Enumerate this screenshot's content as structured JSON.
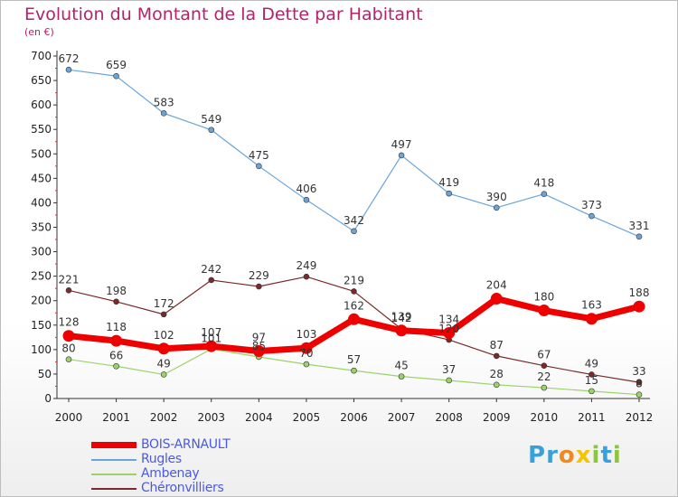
{
  "title": "Evolution du Montant de la Dette par Habitant",
  "subtitle": "(en €)",
  "logo": {
    "letters": [
      "P",
      "r",
      "o",
      "x",
      "i",
      "t",
      "i"
    ],
    "colors": [
      "#3aa0d8",
      "#3aa0d8",
      "#f08a1d",
      "#f4c400",
      "#8cc63f",
      "#3aa0d8",
      "#8cc63f"
    ]
  },
  "chart_data": {
    "type": "line",
    "title": "Evolution du Montant de la Dette par Habitant",
    "ylabel": "(en €)",
    "x": [
      2000,
      2001,
      2002,
      2003,
      2004,
      2005,
      2006,
      2007,
      2008,
      2009,
      2010,
      2011,
      2012
    ],
    "ylim": [
      0,
      700
    ],
    "yticks": [
      0,
      50,
      100,
      150,
      200,
      250,
      300,
      350,
      400,
      450,
      500,
      550,
      600,
      650,
      700
    ],
    "grid": false,
    "legend_position": "bottom-left",
    "series": [
      {
        "name": "BOIS-ARNAULT",
        "color": "#ee0000",
        "thick": true,
        "values": [
          128,
          118,
          102,
          107,
          97,
          103,
          162,
          139,
          134,
          204,
          180,
          163,
          188
        ]
      },
      {
        "name": "Rugles",
        "color": "#6aa4d8",
        "thick": false,
        "values": [
          672,
          659,
          583,
          549,
          475,
          406,
          342,
          497,
          419,
          390,
          418,
          373,
          331
        ]
      },
      {
        "name": "Ambenay",
        "color": "#9bd36a",
        "thick": false,
        "values": [
          80,
          66,
          49,
          101,
          85,
          70,
          57,
          45,
          37,
          28,
          22,
          15,
          8
        ]
      },
      {
        "name": "Chéronvilliers",
        "color": "#7a2a2a",
        "thick": false,
        "values": [
          221,
          198,
          172,
          242,
          229,
          249,
          219,
          142,
          120,
          87,
          67,
          49,
          33
        ]
      }
    ]
  }
}
